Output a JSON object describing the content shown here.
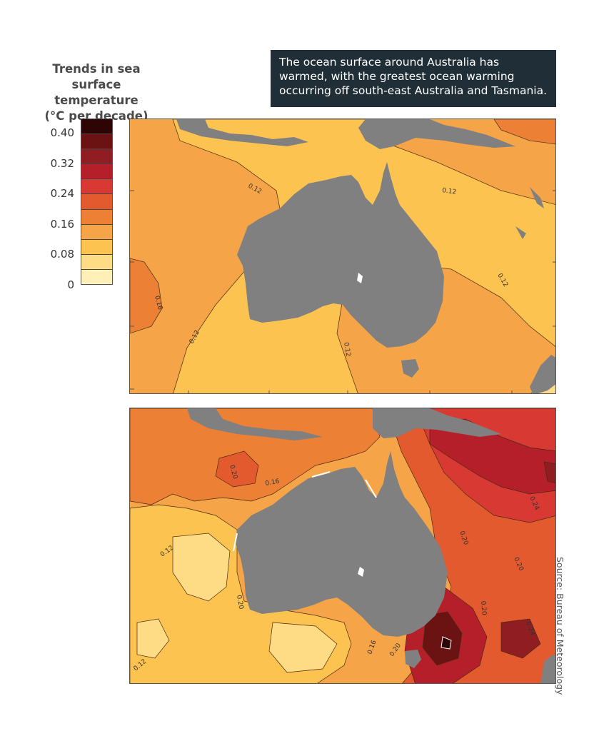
{
  "legend": {
    "title_lines": [
      "Trends in sea",
      "surface temperature",
      "(°C per decade)"
    ],
    "tick_labels": [
      "0.40",
      "0.32",
      "0.24",
      "0.16",
      "0.08",
      "0"
    ],
    "colors": [
      "#2e0505",
      "#6b1212",
      "#8f1d22",
      "#b41f2a",
      "#d83a33",
      "#e25a2e",
      "#ec8034",
      "#f5a447",
      "#fdc351",
      "#fedc86",
      "#fff0b8"
    ]
  },
  "callout": {
    "text": "The ocean surface around Australia has warmed, with the greatest ocean warming occurring off south-east Australia and Tasmania."
  },
  "top_map": {
    "contour_labels": [
      "0.12",
      "0.12",
      "0.12",
      "0.16",
      "0.12",
      "0.12"
    ]
  },
  "bottom_map": {
    "contour_labels": [
      "0.20",
      "0.16",
      "0.12",
      "0.20",
      "0.24",
      "0.20",
      "0.20",
      "0.24",
      "0.20",
      "0.16",
      "0.12",
      "0.20"
    ]
  },
  "source": "Source: Bureau of Meteorology"
}
